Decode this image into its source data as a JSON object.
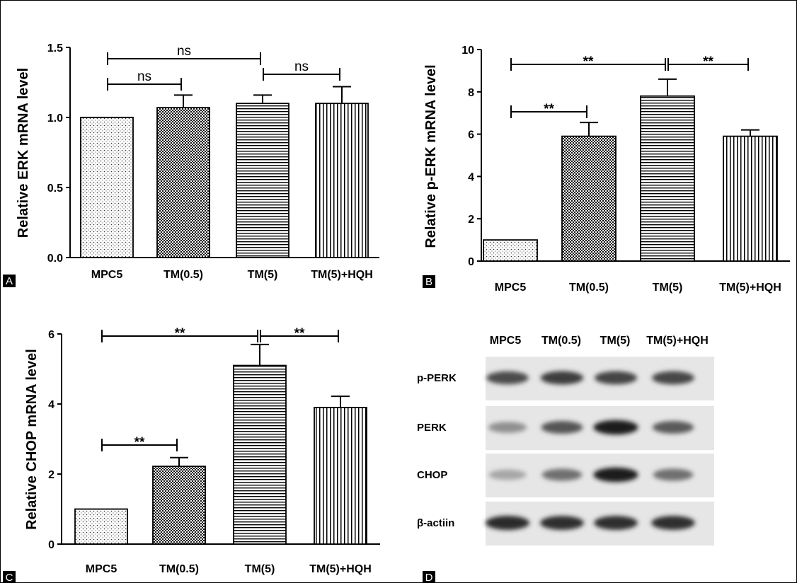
{
  "chart_data": [
    {
      "panel": "A",
      "type": "bar",
      "ylabel": "Relative ERK mRNA level",
      "categories": [
        "MPC5",
        "TM(0.5)",
        "TM(5)",
        "TM(5)+HQH"
      ],
      "values": [
        1.0,
        1.07,
        1.1,
        1.1
      ],
      "errors": [
        0,
        0.09,
        0.06,
        0.12
      ],
      "ylim": [
        0,
        1.5
      ],
      "yticks": [
        "0.0",
        "0.5",
        "1.0",
        "1.5"
      ],
      "patterns": [
        "dots",
        "checker",
        "hlines",
        "vlines"
      ],
      "significance": [
        {
          "from": 0,
          "to": 1,
          "label": "ns"
        },
        {
          "from": 0,
          "to": 2,
          "label": "ns"
        },
        {
          "from": 2,
          "to": 3,
          "label": "ns"
        }
      ]
    },
    {
      "panel": "B",
      "type": "bar",
      "ylabel": "Relative p-ERK mRNA level",
      "categories": [
        "MPC5",
        "TM(0.5)",
        "TM(5)",
        "TM(5)+HQH"
      ],
      "values": [
        1.0,
        5.9,
        7.8,
        5.9
      ],
      "errors": [
        0,
        0.65,
        0.8,
        0.3
      ],
      "ylim": [
        0,
        10
      ],
      "yticks": [
        "0",
        "2",
        "4",
        "6",
        "8",
        "10"
      ],
      "patterns": [
        "dots",
        "checker",
        "hlines",
        "vlines"
      ],
      "significance": [
        {
          "from": 0,
          "to": 1,
          "label": "**"
        },
        {
          "from": 0,
          "to": 2,
          "label": "**"
        },
        {
          "from": 2,
          "to": 3,
          "label": "**"
        }
      ]
    },
    {
      "panel": "C",
      "type": "bar",
      "ylabel": "Relative CHOP mRNA level",
      "categories": [
        "MPC5",
        "TM(0.5)",
        "TM(5)",
        "TM(5)+HQH"
      ],
      "values": [
        1.0,
        2.22,
        5.1,
        3.9
      ],
      "errors": [
        0,
        0.25,
        0.6,
        0.32
      ],
      "ylim": [
        0,
        6
      ],
      "yticks": [
        "0",
        "2",
        "4",
        "6"
      ],
      "patterns": [
        "dots",
        "checker",
        "hlines",
        "vlines"
      ],
      "significance": [
        {
          "from": 0,
          "to": 1,
          "label": "**"
        },
        {
          "from": 0,
          "to": 2,
          "label": "**"
        },
        {
          "from": 2,
          "to": 3,
          "label": "**"
        }
      ]
    }
  ],
  "blot": {
    "panel": "D",
    "lanes": [
      "MPC5",
      "TM(0.5)",
      "TM(5)",
      "TM(5)+HQH"
    ],
    "rows": [
      {
        "label": "p-PERK",
        "intensity": [
          0.72,
          0.78,
          0.75,
          0.74
        ]
      },
      {
        "label": "PERK",
        "intensity": [
          0.4,
          0.68,
          0.95,
          0.65
        ]
      },
      {
        "label": "CHOP",
        "intensity": [
          0.3,
          0.55,
          0.95,
          0.55
        ]
      },
      {
        "label": "β-actiin",
        "intensity": [
          0.88,
          0.86,
          0.86,
          0.85
        ]
      }
    ]
  },
  "panel_labels": [
    "A",
    "B",
    "C",
    "D"
  ]
}
